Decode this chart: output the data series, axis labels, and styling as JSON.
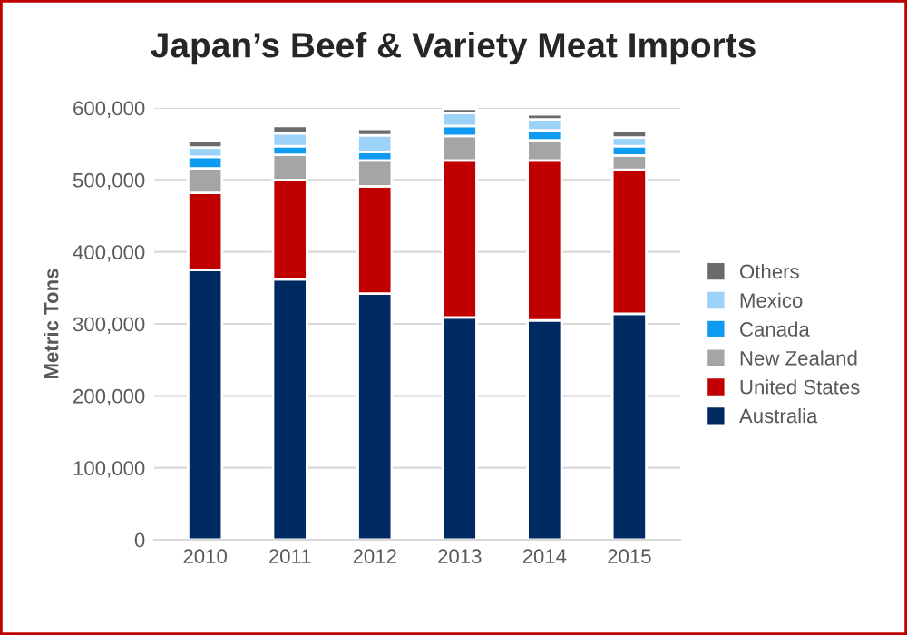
{
  "chart_data": {
    "type": "bar",
    "title": "Japan’s Beef & Variety Meat Imports",
    "ylabel": "Metric Tons",
    "categories": [
      "2010",
      "2011",
      "2012",
      "2013",
      "2014",
      "2015"
    ],
    "stacked": true,
    "series": [
      {
        "name": "Australia",
        "color": "#002b62",
        "values": [
          375000,
          362000,
          342000,
          309000,
          305000,
          314000
        ]
      },
      {
        "name": "United States",
        "color": "#c00000",
        "values": [
          107000,
          138000,
          149000,
          218000,
          222000,
          200000
        ]
      },
      {
        "name": "New Zealand",
        "color": "#a5a5a5",
        "values": [
          34000,
          35000,
          36000,
          34000,
          28000,
          20000
        ]
      },
      {
        "name": "Canada",
        "color": "#0f9bf1",
        "values": [
          16000,
          12000,
          12000,
          14000,
          14000,
          13000
        ]
      },
      {
        "name": "Mexico",
        "color": "#9dd3f8",
        "values": [
          13000,
          18000,
          23000,
          18000,
          15000,
          12000
        ]
      },
      {
        "name": "Others",
        "color": "#6b6b6b",
        "values": [
          10000,
          10000,
          9000,
          6000,
          7000,
          9000
        ]
      }
    ],
    "ylim": [
      0,
      600000
    ],
    "yticks": [
      {
        "value": 0,
        "label": "0"
      },
      {
        "value": 100000,
        "label": "100,000"
      },
      {
        "value": 200000,
        "label": "200,000"
      },
      {
        "value": 300000,
        "label": "300,000"
      },
      {
        "value": 400000,
        "label": "400,000"
      },
      {
        "value": 500000,
        "label": "500,000"
      },
      {
        "value": 600000,
        "label": "600,000"
      }
    ],
    "grid": "y",
    "legend": "right"
  }
}
